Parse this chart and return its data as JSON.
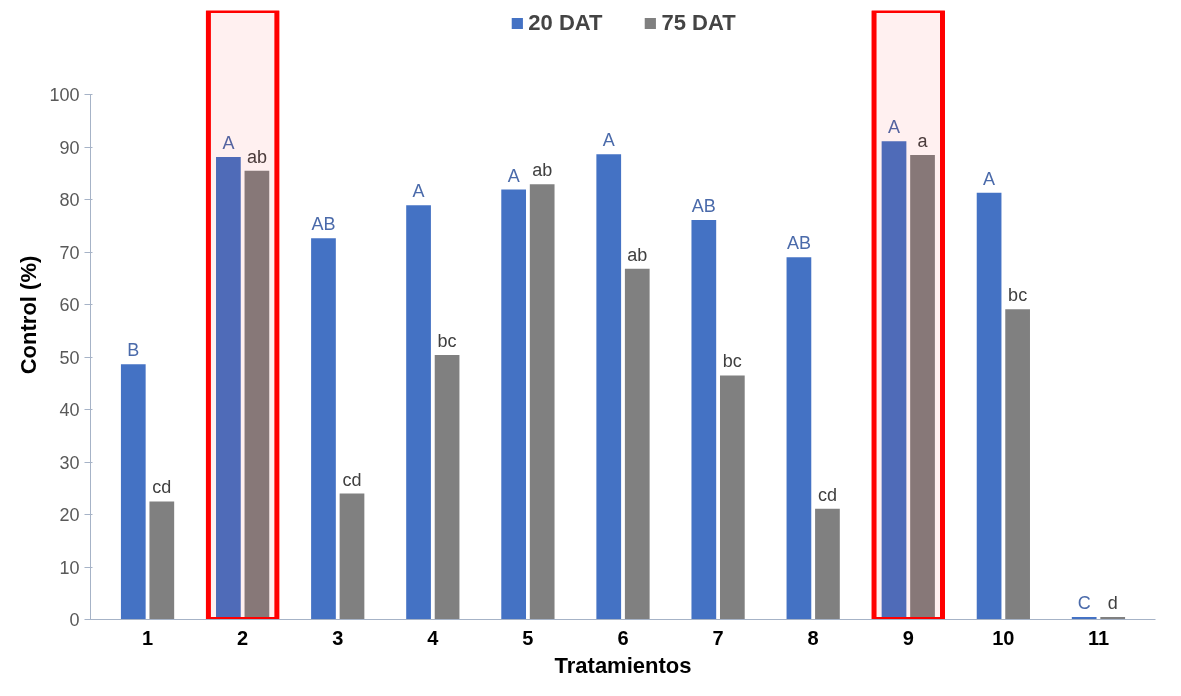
{
  "chart_data": {
    "type": "bar",
    "xlabel": "Tratamientos",
    "ylabel": "Control (%)",
    "categories": [
      "1",
      "2",
      "3",
      "4",
      "5",
      "6",
      "7",
      "8",
      "9",
      "10",
      "11"
    ],
    "series": [
      {
        "name": "20 DAT",
        "color": "#4472c4",
        "values": [
          48.6,
          88.1,
          72.6,
          78.9,
          81.9,
          88.6,
          76.1,
          69.0,
          91.1,
          81.3,
          0.5
        ],
        "value_labels": [
          "B",
          "A",
          "AB",
          "A",
          "A",
          "A",
          "AB",
          "AB",
          "A",
          "A",
          "C"
        ]
      },
      {
        "name": "75 DAT",
        "color": "#808080",
        "values": [
          22.5,
          85.5,
          24.0,
          50.4,
          82.9,
          66.8,
          46.5,
          21.1,
          88.5,
          59.1,
          0.5
        ],
        "value_labels": [
          "cd",
          "ab",
          "cd",
          "bc",
          "ab",
          "ab",
          "bc",
          "cd",
          "a",
          "bc",
          "d"
        ]
      }
    ],
    "ylim": [
      0,
      100
    ],
    "yticks": [
      0,
      10,
      20,
      30,
      40,
      50,
      60,
      70,
      80,
      90,
      100
    ],
    "grid": false,
    "legend": "top",
    "bands": [
      {
        "axis": "x",
        "from": "2",
        "to": "2",
        "color": "#ff0000"
      },
      {
        "axis": "x",
        "from": "9",
        "to": "9",
        "color": "#ff0000"
      }
    ]
  }
}
